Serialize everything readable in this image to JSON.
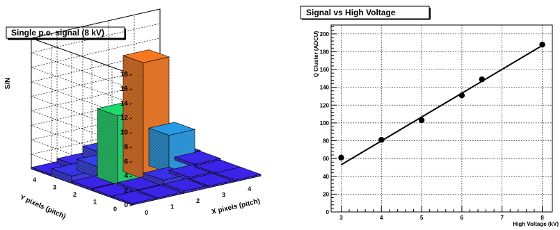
{
  "chart_data": [
    {
      "type": "bar3d",
      "title": "Single p.e. signal (8 kV)",
      "xlabel": "X pixels (pitch)",
      "ylabel": "Y pixels (pitch)",
      "zlabel": "S/N",
      "x_ticks": [
        "0",
        "1",
        "2",
        "3",
        "4"
      ],
      "y_ticks": [
        "0",
        "1",
        "2",
        "3",
        "4"
      ],
      "z_ticks": [
        "0",
        "2",
        "4",
        "6",
        "8",
        "10",
        "12",
        "14",
        "16",
        "18"
      ],
      "zlim": [
        0,
        18
      ],
      "grid": true,
      "cells": [
        {
          "x": 0,
          "y": 0,
          "value": 0.2
        },
        {
          "x": 1,
          "y": 0,
          "value": 0.2
        },
        {
          "x": 2,
          "y": 0,
          "value": 0.3
        },
        {
          "x": 3,
          "y": 0,
          "value": 0.2
        },
        {
          "x": 4,
          "y": 0,
          "value": 0.2
        },
        {
          "x": 0,
          "y": 1,
          "value": 0.2
        },
        {
          "x": 1,
          "y": 1,
          "value": 0.3
        },
        {
          "x": 2,
          "y": 1,
          "value": 0.8
        },
        {
          "x": 3,
          "y": 1,
          "value": 0.4
        },
        {
          "x": 4,
          "y": 1,
          "value": 0.2
        },
        {
          "x": 0,
          "y": 2,
          "value": 0.3
        },
        {
          "x": 1,
          "y": 2,
          "value": 9.5
        },
        {
          "x": 2,
          "y": 2,
          "value": 16.0
        },
        {
          "x": 3,
          "y": 2,
          "value": 5.2
        },
        {
          "x": 4,
          "y": 2,
          "value": 0.4
        },
        {
          "x": 0,
          "y": 3,
          "value": 1.0
        },
        {
          "x": 1,
          "y": 3,
          "value": 1.5
        },
        {
          "x": 2,
          "y": 3,
          "value": 7.5
        },
        {
          "x": 3,
          "y": 3,
          "value": 2.0
        },
        {
          "x": 4,
          "y": 3,
          "value": 0.5
        },
        {
          "x": 0,
          "y": 4,
          "value": 0.2
        },
        {
          "x": 1,
          "y": 4,
          "value": 0.6
        },
        {
          "x": 2,
          "y": 4,
          "value": 1.5
        },
        {
          "x": 3,
          "y": 4,
          "value": 0.5
        },
        {
          "x": 4,
          "y": 4,
          "value": 0.3
        }
      ]
    },
    {
      "type": "scatter",
      "title": "Signal vs High Voltage",
      "xlabel": "High Voltage (kV)",
      "ylabel": "Q Cluster (ADCU)",
      "xlim": [
        2.75,
        8.25
      ],
      "ylim": [
        0,
        210
      ],
      "x_ticks": [
        "3",
        "4",
        "5",
        "6",
        "7",
        "8"
      ],
      "y_ticks": [
        "0",
        "20",
        "40",
        "60",
        "80",
        "100",
        "120",
        "140",
        "160",
        "180",
        "200"
      ],
      "grid": true,
      "points": [
        {
          "x": 3,
          "y": 61
        },
        {
          "x": 4,
          "y": 81
        },
        {
          "x": 5,
          "y": 103
        },
        {
          "x": 6,
          "y": 131
        },
        {
          "x": 6.5,
          "y": 149
        },
        {
          "x": 8,
          "y": 188
        }
      ],
      "fit": {
        "x": [
          3,
          8
        ],
        "y": [
          53,
          187
        ]
      }
    }
  ]
}
